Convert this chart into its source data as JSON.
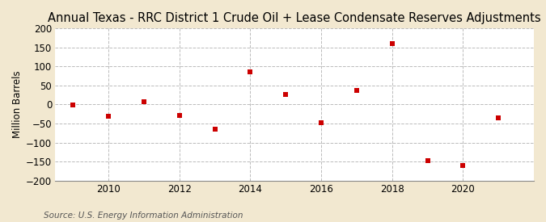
{
  "title": "Annual Texas - RRC District 1 Crude Oil + Lease Condensate Reserves Adjustments",
  "ylabel": "Million Barrels",
  "source": "Source: U.S. Energy Information Administration",
  "years": [
    2009,
    2010,
    2011,
    2012,
    2013,
    2014,
    2015,
    2016,
    2017,
    2018,
    2019,
    2020,
    2021
  ],
  "values": [
    -2,
    -30,
    8,
    -28,
    -65,
    85,
    27,
    -48,
    37,
    160,
    -148,
    -160,
    -35
  ],
  "marker_color": "#cc0000",
  "marker_size": 5,
  "background_color": "#f2e8d0",
  "plot_background_color": "#ffffff",
  "grid_color": "#bbbbbb",
  "ylim": [
    -200,
    200
  ],
  "yticks": [
    -200,
    -150,
    -100,
    -50,
    0,
    50,
    100,
    150,
    200
  ],
  "xlim": [
    2008.5,
    2022.0
  ],
  "xticks": [
    2010,
    2012,
    2014,
    2016,
    2018,
    2020
  ],
  "title_fontsize": 10.5,
  "axis_fontsize": 8.5,
  "source_fontsize": 7.5
}
